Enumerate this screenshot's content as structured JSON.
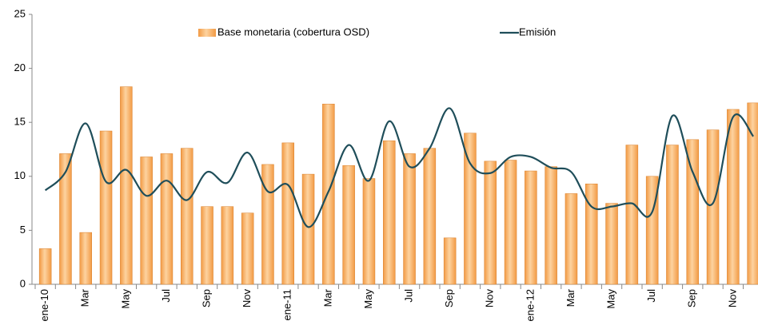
{
  "chart_data": {
    "type": "bar_line",
    "categories": [
      "ene-10",
      null,
      "Mar",
      null,
      "May",
      null,
      "Jul",
      null,
      "Sep",
      null,
      "Nov",
      null,
      "ene-11",
      null,
      "Mar",
      null,
      "May",
      null,
      "Jul",
      null,
      "Sep",
      null,
      "Nov",
      null,
      "ene-12",
      null,
      "Mar",
      null,
      "May",
      null,
      "Jul",
      null,
      "Sep",
      null,
      "Nov",
      null
    ],
    "series": [
      {
        "name": "Base monetaria (cobertura OSD)",
        "type": "bar",
        "color": "#f29a44",
        "values": [
          3.3,
          12.1,
          4.8,
          14.2,
          18.3,
          11.8,
          12.1,
          12.6,
          7.2,
          7.2,
          6.6,
          11.1,
          13.1,
          10.2,
          16.7,
          11.0,
          9.8,
          13.3,
          12.1,
          12.6,
          4.3,
          14.0,
          11.4,
          11.5,
          10.5,
          10.9,
          8.4,
          9.3,
          7.5,
          12.9,
          10.0,
          12.9,
          13.4,
          14.3,
          16.2,
          16.8
        ]
      },
      {
        "name": "Emisión",
        "type": "line",
        "color": "#1f4e5a",
        "values": [
          8.7,
          10.4,
          14.9,
          9.5,
          10.6,
          8.2,
          9.6,
          7.8,
          10.4,
          9.4,
          12.2,
          8.6,
          9.2,
          5.3,
          8.6,
          12.9,
          9.6,
          15.1,
          10.9,
          12.6,
          16.3,
          11.2,
          10.3,
          11.8,
          11.8,
          10.8,
          10.4,
          7.2,
          7.2,
          7.5,
          6.7,
          15.6,
          10.4,
          7.5,
          15.5,
          13.7
        ]
      }
    ],
    "ylim": [
      0,
      25
    ],
    "yticks": [
      0,
      5,
      10,
      15,
      20,
      25
    ],
    "grid": false,
    "legend": "top"
  }
}
